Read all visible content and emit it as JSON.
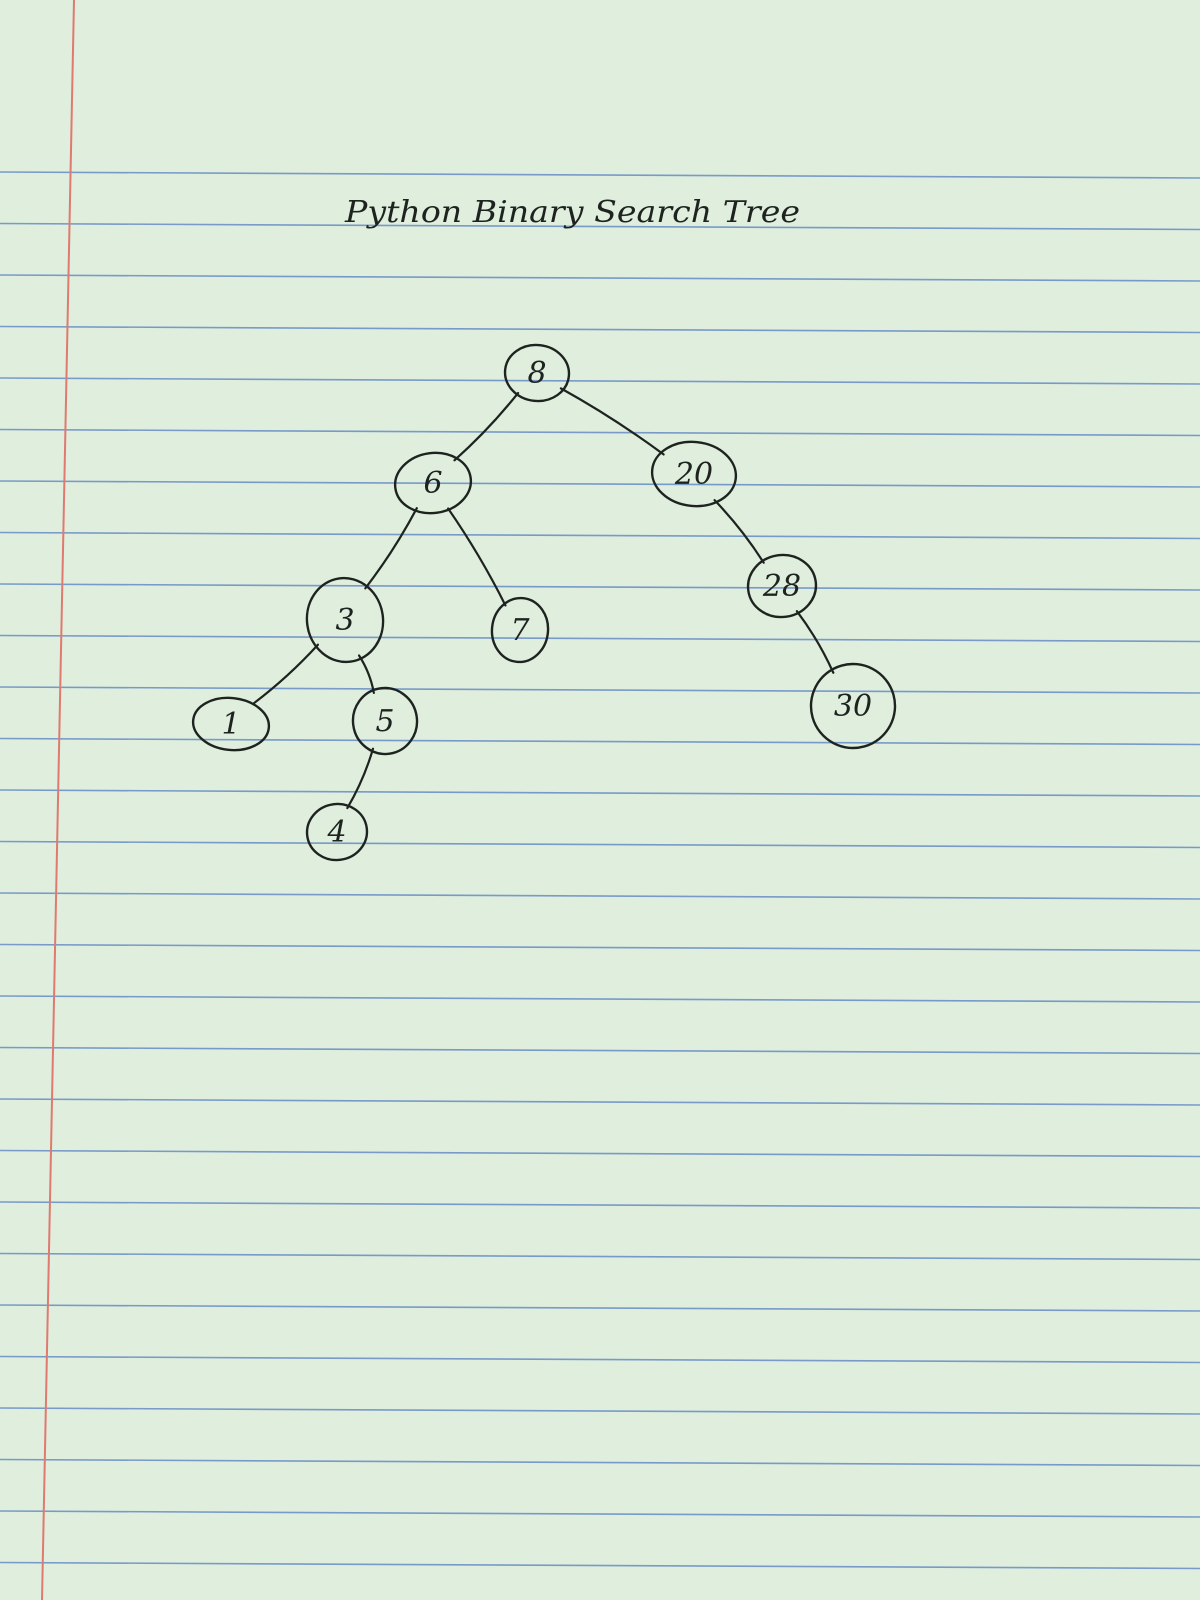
{
  "paper": {
    "background": "#dfeedd",
    "rule_color": "#5f86c4",
    "margin_color": "#e07a70",
    "ink_color": "#1e2320"
  },
  "title": "Python Binary Search Tree",
  "tree": {
    "nodes": [
      {
        "id": "n8",
        "label": "8"
      },
      {
        "id": "n6",
        "label": "6"
      },
      {
        "id": "n20",
        "label": "20"
      },
      {
        "id": "n3",
        "label": "3"
      },
      {
        "id": "n7",
        "label": "7"
      },
      {
        "id": "n28",
        "label": "28"
      },
      {
        "id": "n1",
        "label": "1"
      },
      {
        "id": "n5",
        "label": "5"
      },
      {
        "id": "n30",
        "label": "30"
      },
      {
        "id": "n4",
        "label": "4"
      }
    ],
    "edges": [
      {
        "from": "n8",
        "to": "n6"
      },
      {
        "from": "n8",
        "to": "n20"
      },
      {
        "from": "n6",
        "to": "n3"
      },
      {
        "from": "n6",
        "to": "n7"
      },
      {
        "from": "n20",
        "to": "n28"
      },
      {
        "from": "n3",
        "to": "n1"
      },
      {
        "from": "n3",
        "to": "n5"
      },
      {
        "from": "n28",
        "to": "n30"
      },
      {
        "from": "n5",
        "to": "n4"
      }
    ]
  }
}
